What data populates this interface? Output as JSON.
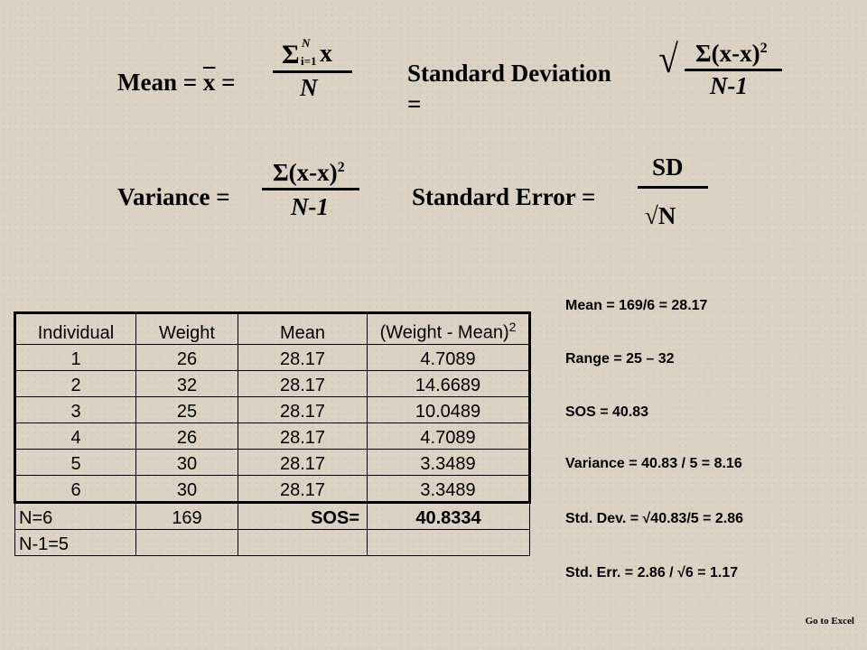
{
  "formulas": {
    "mean": {
      "label": "Mean = ",
      "xbar": "x",
      "eq": " =",
      "sigma": "Σ",
      "sup": "N",
      "sub": "i=1",
      "numerator_var": "x",
      "denominator": "N"
    },
    "std_dev": {
      "label": "Standard Deviation",
      "eq": "=",
      "numerator": "Σ(x-x)",
      "numerator_exp": "2",
      "denominator": "N-1",
      "sqrt": "√"
    },
    "variance": {
      "label": "Variance =",
      "numerator": "Σ(x-x)",
      "numerator_exp": "2",
      "denominator": "N-1"
    },
    "std_err": {
      "label": "Standard Error =",
      "numerator": "SD",
      "denominator": "√N"
    }
  },
  "table": {
    "headers": [
      "Individual",
      "Weight",
      "Mean",
      "(Weight - Mean)"
    ],
    "header_exp": "2",
    "rows": [
      [
        "1",
        "26",
        "28.17",
        "4.7089"
      ],
      [
        "2",
        "32",
        "28.17",
        "14.6689"
      ],
      [
        "3",
        "25",
        "28.17",
        "10.0489"
      ],
      [
        "4",
        "26",
        "28.17",
        "4.7089"
      ],
      [
        "5",
        "30",
        "28.17",
        "3.3489"
      ],
      [
        "6",
        "30",
        "28.17",
        "3.3489"
      ]
    ],
    "summary": {
      "n": "N=6",
      "sum_weight": "169",
      "sos_label": "SOS=",
      "sos_value": "40.8334",
      "n_minus_1": "N-1=5"
    }
  },
  "calculations": [
    "Mean = 169/6 = 28.17",
    "Range = 25 – 32",
    "SOS = 40.83",
    "Variance = 40.83 / 5 = 8.16",
    "Std. Dev. = √40.83/5 = 2.86",
    "Std. Err. = 2.86 / √6 = 1.17"
  ],
  "link": {
    "go_to_excel": "Go to Excel"
  }
}
